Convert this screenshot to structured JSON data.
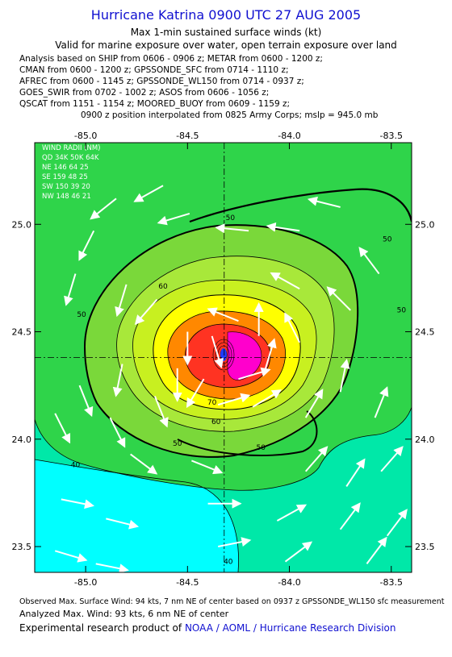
{
  "header": {
    "title": "Hurricane Katrina 0900 UTC 27 AUG 2005",
    "subtitle1": "Max 1-min sustained surface winds (kt)",
    "subtitle2": "Valid for marine exposure over water, open terrain exposure over land"
  },
  "analysis": [
    "Analysis based on  SHIP from 0606 - 0906 z;  METAR from 0600 - 1200 z;",
    "CMAN from 0600 - 1200 z;  GPSSONDE_SFC from 0714 - 1110 z;",
    "AFREC from 0600 - 1145 z;  GPSSONDE_WL150 from 0714 - 0937 z;",
    "GOES_SWIR from 0702 - 1002 z;  ASOS from 0606 - 1056 z;",
    "QSCAT from 1151 - 1154 z;  MOORED_BUOY from 0609 - 1159 z;",
    "0900 z position interpolated from 0825 Army Corps; mslp = 945.0 mb"
  ],
  "chart_data": {
    "type": "heatmap",
    "xlim": [
      -85.25,
      -83.4
    ],
    "ylim": [
      23.38,
      25.38
    ],
    "x_ticks": [
      -85.0,
      -84.5,
      -84.0,
      -83.5
    ],
    "x_tick_labels": [
      "-85.0",
      "-84.5",
      "-84.0",
      "-83.5"
    ],
    "y_ticks": [
      23.5,
      24.0,
      24.5,
      25.0
    ],
    "y_tick_labels": [
      "23.5",
      "24.0",
      "24.5",
      "25.0"
    ],
    "center": {
      "lon": -84.32,
      "lat": 24.38
    },
    "contour_labels": [
      {
        "text": "50",
        "lon": -84.29,
        "lat": 25.02
      },
      {
        "text": "50",
        "lon": -83.52,
        "lat": 24.92
      },
      {
        "text": "50",
        "lon": -83.45,
        "lat": 24.59
      },
      {
        "text": "50",
        "lon": -85.02,
        "lat": 24.57
      },
      {
        "text": "60",
        "lon": -84.62,
        "lat": 24.7
      },
      {
        "text": "70",
        "lon": -84.38,
        "lat": 24.16
      },
      {
        "text": "60",
        "lon": -84.36,
        "lat": 24.07
      },
      {
        "text": "50",
        "lon": -84.55,
        "lat": 23.97
      },
      {
        "text": "50",
        "lon": -84.14,
        "lat": 23.95
      },
      {
        "text": "40",
        "lon": -85.05,
        "lat": 23.87
      },
      {
        "text": "40",
        "lon": -84.3,
        "lat": 23.42
      }
    ],
    "wind_radii": {
      "header": "WIND RADII (NM)",
      "rows": [
        "QD  34K  50K  64K",
        "NE  146   64   25",
        "SE  159   48   25",
        "SW  150   39   20",
        "NW  148   46   21"
      ]
    },
    "vectors": [
      {
        "lon": -84.85,
        "lat": 25.12,
        "u": -1.0,
        "v": -0.8
      },
      {
        "lon": -84.62,
        "lat": 25.18,
        "u": -0.9,
        "v": -0.5
      },
      {
        "lon": -84.96,
        "lat": 24.97,
        "u": -0.5,
        "v": -1.0
      },
      {
        "lon": -84.49,
        "lat": 25.05,
        "u": -1.0,
        "v": -0.3
      },
      {
        "lon": -85.05,
        "lat": 24.77,
        "u": -0.3,
        "v": -1.0
      },
      {
        "lon": -84.8,
        "lat": 24.72,
        "u": -0.3,
        "v": -1.0
      },
      {
        "lon": -84.65,
        "lat": 24.65,
        "u": -0.7,
        "v": -0.8
      },
      {
        "lon": -84.2,
        "lat": 24.97,
        "u": -1.0,
        "v": 0.1
      },
      {
        "lon": -83.95,
        "lat": 24.97,
        "u": -1.0,
        "v": 0.15
      },
      {
        "lon": -83.75,
        "lat": 25.08,
        "u": -1.0,
        "v": 0.25
      },
      {
        "lon": -83.56,
        "lat": 24.77,
        "u": -0.6,
        "v": 0.8
      },
      {
        "lon": -83.7,
        "lat": 24.6,
        "u": -0.7,
        "v": 0.7
      },
      {
        "lon": -83.95,
        "lat": 24.7,
        "u": -0.9,
        "v": 0.5
      },
      {
        "lon": -83.95,
        "lat": 24.45,
        "u": -0.5,
        "v": 1.0
      },
      {
        "lon": -84.5,
        "lat": 24.5,
        "u": 0.0,
        "v": -1.0
      },
      {
        "lon": -84.38,
        "lat": 24.48,
        "u": 0.3,
        "v": -1.0
      },
      {
        "lon": -84.25,
        "lat": 24.55,
        "u": -1.0,
        "v": 0.4
      },
      {
        "lon": -84.15,
        "lat": 24.48,
        "u": 0.0,
        "v": 1.0
      },
      {
        "lon": -84.42,
        "lat": 24.28,
        "u": -0.6,
        "v": -1.0
      },
      {
        "lon": -84.25,
        "lat": 24.28,
        "u": 1.0,
        "v": 0.3
      },
      {
        "lon": -84.12,
        "lat": 24.32,
        "u": 0.3,
        "v": 1.0
      },
      {
        "lon": -84.35,
        "lat": 24.16,
        "u": 1.0,
        "v": 0.3
      },
      {
        "lon": -84.55,
        "lat": 24.33,
        "u": 0.0,
        "v": -1.0
      },
      {
        "lon": -84.66,
        "lat": 24.2,
        "u": 0.4,
        "v": -1.0
      },
      {
        "lon": -84.82,
        "lat": 24.35,
        "u": -0.2,
        "v": -1.0
      },
      {
        "lon": -85.03,
        "lat": 24.25,
        "u": 0.4,
        "v": -1.0
      },
      {
        "lon": -84.88,
        "lat": 24.1,
        "u": 0.5,
        "v": -1.0
      },
      {
        "lon": -85.15,
        "lat": 24.12,
        "u": 0.5,
        "v": -1.0
      },
      {
        "lon": -84.78,
        "lat": 23.93,
        "u": 0.8,
        "v": -0.6
      },
      {
        "lon": -84.48,
        "lat": 23.9,
        "u": 1.0,
        "v": -0.4
      },
      {
        "lon": -84.18,
        "lat": 24.15,
        "u": 1.0,
        "v": 0.6
      },
      {
        "lon": -83.92,
        "lat": 24.1,
        "u": 0.6,
        "v": 1.0
      },
      {
        "lon": -83.75,
        "lat": 24.22,
        "u": 0.2,
        "v": 1.0
      },
      {
        "lon": -83.58,
        "lat": 24.1,
        "u": 0.4,
        "v": 1.0
      },
      {
        "lon": -83.92,
        "lat": 23.85,
        "u": 0.7,
        "v": 0.8
      },
      {
        "lon": -83.72,
        "lat": 23.78,
        "u": 0.6,
        "v": 0.9
      },
      {
        "lon": -83.55,
        "lat": 23.85,
        "u": 0.7,
        "v": 0.8
      },
      {
        "lon": -85.12,
        "lat": 23.72,
        "u": 1.0,
        "v": -0.2
      },
      {
        "lon": -84.9,
        "lat": 23.63,
        "u": 1.0,
        "v": -0.25
      },
      {
        "lon": -84.4,
        "lat": 23.7,
        "u": 1.0,
        "v": 0.0
      },
      {
        "lon": -84.06,
        "lat": 23.62,
        "u": 0.9,
        "v": 0.5
      },
      {
        "lon": -83.75,
        "lat": 23.58,
        "u": 0.6,
        "v": 0.8
      },
      {
        "lon": -83.52,
        "lat": 23.55,
        "u": 0.6,
        "v": 0.8
      },
      {
        "lon": -85.15,
        "lat": 23.48,
        "u": 1.0,
        "v": -0.3
      },
      {
        "lon": -84.95,
        "lat": 23.42,
        "u": 1.0,
        "v": -0.2
      },
      {
        "lon": -84.35,
        "lat": 23.5,
        "u": 1.0,
        "v": 0.2
      },
      {
        "lon": -84.02,
        "lat": 23.43,
        "u": 0.8,
        "v": 0.6
      },
      {
        "lon": -83.62,
        "lat": 23.42,
        "u": 0.6,
        "v": 0.8
      }
    ],
    "colors": {
      "lt40": "#00ffff",
      "c40_50": "#00e8a8",
      "c50_60": "#2fd44a",
      "c60_70": "#9fe03a",
      "c70_80": "#ffff00",
      "c80_90": "#ff8800",
      "c90": "#ff2222",
      "core": "#ff00ff"
    }
  },
  "footer": {
    "observed": "Observed Max. Surface Wind: 94 kts, 7 nm NE of center based on 0937 z GPSSONDE_WL150 sfc measurement",
    "analyzed": "Analyzed Max. Wind: 93 kts, 6 nm NE of center",
    "product_prefix": "Experimental research product of",
    "product_org": "NOAA / AOML / Hurricane Research Division"
  }
}
